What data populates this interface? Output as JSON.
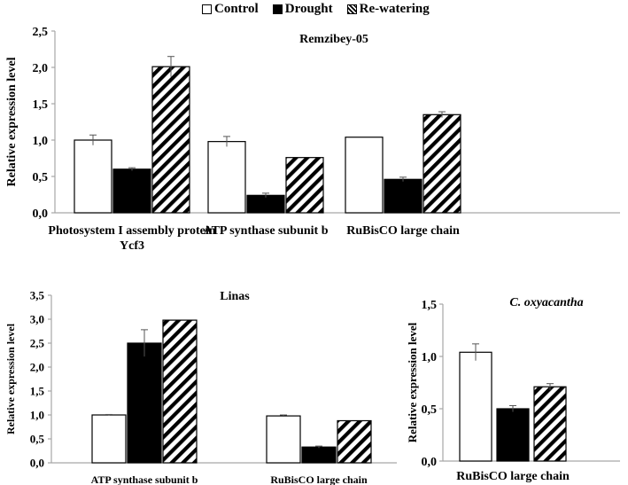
{
  "legend": [
    {
      "name": "Control",
      "swatch": "white"
    },
    {
      "name": "Drought",
      "swatch": "black"
    },
    {
      "name": "Re-watering",
      "swatch": "hatch"
    }
  ],
  "colors": {
    "axis": "#a6a6a6",
    "bar_edge": "#000000",
    "drought": "#000000",
    "control": "#ffffff"
  },
  "chart_data": [
    {
      "type": "bar",
      "title": "Remzibey-05",
      "ylabel": "Relative expression level",
      "xlabel": "",
      "ylim": [
        0,
        2.5
      ],
      "yticks": [
        "0,0",
        "0,5",
        "1,0",
        "1,5",
        "2,0",
        "2,5"
      ],
      "categories": [
        [
          "Photosystem I assembly protein",
          "Ycf3"
        ],
        [
          "ATP synthase subunit b"
        ],
        [
          "RuBisCO large chain"
        ]
      ],
      "series": [
        {
          "name": "Control",
          "values": [
            1.0,
            0.98,
            1.04
          ],
          "errors": [
            0.07,
            0.07,
            0.0
          ]
        },
        {
          "name": "Drought",
          "values": [
            0.6,
            0.24,
            0.46
          ],
          "errors": [
            0.02,
            0.03,
            0.03
          ]
        },
        {
          "name": "Re-watering",
          "values": [
            2.01,
            0.76,
            1.35
          ],
          "errors": [
            0.14,
            0.0,
            0.04
          ]
        }
      ]
    },
    {
      "type": "bar",
      "title": "Linas",
      "ylabel": "Relative expression level",
      "xlabel": "",
      "ylim": [
        0,
        3.5
      ],
      "yticks": [
        "0,0",
        "0,5",
        "1,0",
        "1,5",
        "2,0",
        "2,5",
        "3,0",
        "3,5"
      ],
      "categories": [
        [
          "ATP synthase subunit b"
        ],
        [
          "RuBisCO large chain"
        ]
      ],
      "series": [
        {
          "name": "Control",
          "values": [
            1.0,
            0.98
          ],
          "errors": [
            0.01,
            0.02
          ]
        },
        {
          "name": "Drought",
          "values": [
            2.5,
            0.33
          ],
          "errors": [
            0.28,
            0.02
          ]
        },
        {
          "name": "Re-watering",
          "values": [
            2.98,
            0.88
          ],
          "errors": [
            0.0,
            0.0
          ]
        }
      ]
    },
    {
      "type": "bar",
      "title": "C. oxyacantha",
      "ylabel": "Relative expression level",
      "xlabel": "",
      "ylim": [
        0,
        1.5
      ],
      "yticks": [
        "0,0",
        "0,5",
        "1,0",
        "1,5"
      ],
      "categories": [
        [
          "RuBisCO large chain"
        ]
      ],
      "series": [
        {
          "name": "Control",
          "values": [
            1.04
          ],
          "errors": [
            0.08
          ]
        },
        {
          "name": "Drought",
          "values": [
            0.5
          ],
          "errors": [
            0.03
          ]
        },
        {
          "name": "Re-watering",
          "values": [
            0.71
          ],
          "errors": [
            0.03
          ]
        }
      ]
    }
  ]
}
